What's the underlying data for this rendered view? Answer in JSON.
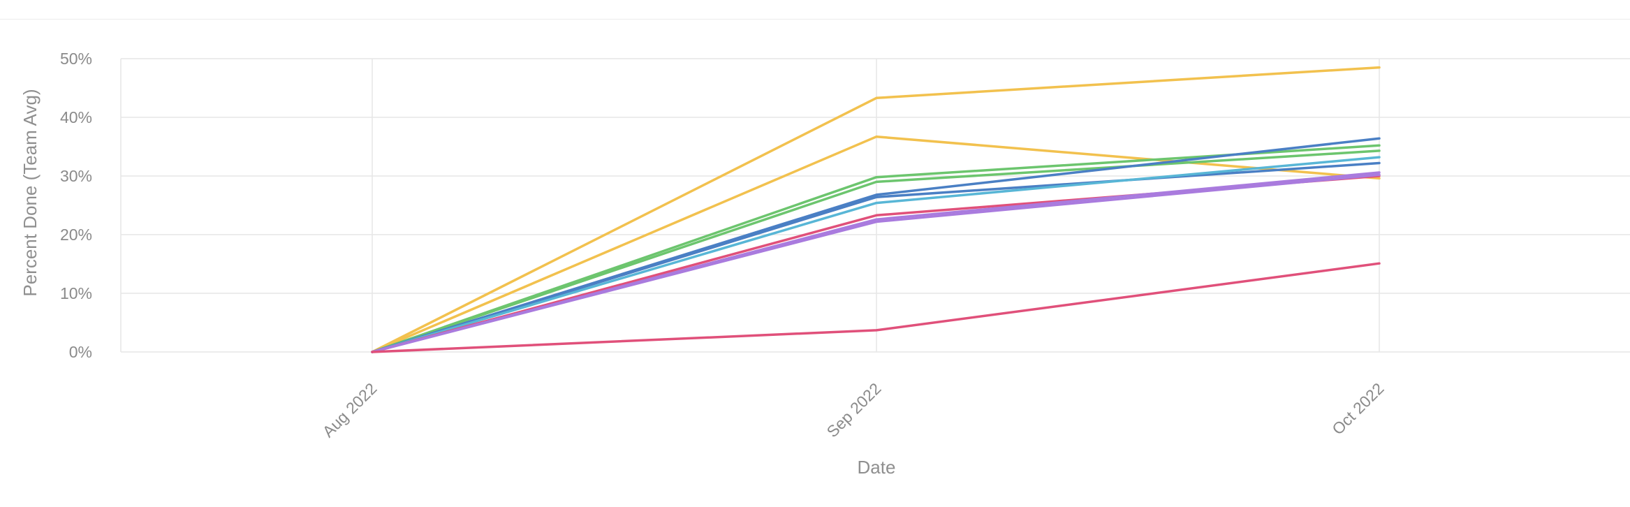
{
  "chart_data": {
    "type": "line",
    "xlabel": "Date",
    "ylabel": "Percent Done (Team Avg)",
    "categories": [
      "Aug 2022",
      "Sep 2022",
      "Oct 2022"
    ],
    "ylim": [
      0,
      50
    ],
    "y_ticks": [
      "0%",
      "10%",
      "20%",
      "30%",
      "40%",
      "50%"
    ],
    "grid": true,
    "legend": "none",
    "series": [
      {
        "color": "#f2c14e",
        "values": [
          0,
          43.3,
          48.5
        ]
      },
      {
        "color": "#f2c14e",
        "values": [
          0,
          36.7,
          29.6
        ]
      },
      {
        "color": "#6cc56e",
        "values": [
          0,
          29.8,
          35.2
        ]
      },
      {
        "color": "#6cc56e",
        "values": [
          0,
          29.0,
          34.3
        ]
      },
      {
        "color": "#4a7fc4",
        "values": [
          0,
          26.8,
          36.4
        ]
      },
      {
        "color": "#4a7fc4",
        "values": [
          0,
          26.4,
          32.2
        ]
      },
      {
        "color": "#58b6d6",
        "values": [
          0,
          25.4,
          33.2
        ]
      },
      {
        "color": "#e0507a",
        "values": [
          0,
          23.3,
          30.0
        ]
      },
      {
        "color": "#a97bde",
        "values": [
          0,
          22.6,
          30.6
        ]
      },
      {
        "color": "#a97bde",
        "values": [
          0,
          22.2,
          30.2
        ]
      },
      {
        "color": "#e0507a",
        "values": [
          0,
          3.7,
          15.1
        ]
      }
    ]
  }
}
